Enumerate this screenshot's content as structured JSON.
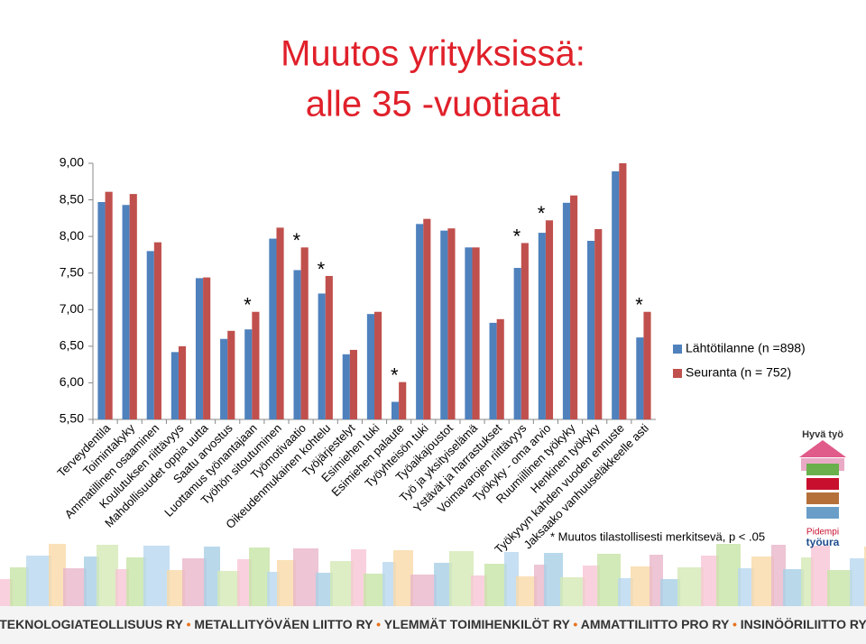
{
  "chart_data": {
    "type": "bar",
    "title": "Muutos yrityksissä:",
    "subtitle": "alle 35 -vuotiaat",
    "categories": [
      "Terveydentila",
      "Toimintakyky",
      "Ammatillinen osaaminen",
      "Koulutuksen riittävyys",
      "Mahdollisuudet oppia uutta",
      "Saatu arvostus",
      "Luottamus työnantajaan",
      "Työhön sitoutuminen",
      "Työmotivaatio",
      "Oikeudenmukainen kohtelu",
      "Työjärjestelyt",
      "Esimiehen tuki",
      "Esimiehen palaute",
      "Työyhteisön tuki",
      "Työaikajoustot",
      "Työ ja yksityiselämä",
      "Ystävät ja harrastukset",
      "Voimavarojen riittävyys",
      "Työkyky - oma arvio",
      "Ruumiillinen työkyky",
      "Henkinen työkyky",
      "Työkyvyn kahden vuoden ennuste",
      "Jaksaako vanhuuseläkkeelle asti"
    ],
    "series": [
      {
        "name": "Lähtötilanne (n =898)",
        "color": "#4f81bd",
        "values": [
          8.47,
          8.43,
          7.8,
          6.42,
          7.43,
          6.6,
          6.73,
          7.97,
          7.54,
          7.22,
          6.39,
          6.94,
          5.74,
          8.17,
          8.08,
          7.85,
          6.82,
          7.57,
          8.05,
          8.46,
          7.94,
          8.89,
          6.62
        ]
      },
      {
        "name": "Seuranta (n = 752)",
        "color": "#c0504d",
        "values": [
          8.61,
          8.58,
          7.92,
          6.5,
          7.44,
          6.71,
          6.97,
          8.12,
          7.85,
          7.46,
          6.45,
          6.97,
          6.01,
          8.24,
          8.11,
          7.85,
          6.87,
          7.91,
          8.22,
          8.56,
          8.1,
          9.0,
          6.97
        ]
      }
    ],
    "ylim": [
      5.5,
      9.0
    ],
    "yticks": [
      {
        "value": 5.5,
        "label": "5,50"
      },
      {
        "value": 6.0,
        "label": "6,00"
      },
      {
        "value": 6.5,
        "label": "6,50"
      },
      {
        "value": 7.0,
        "label": "7,00"
      },
      {
        "value": 7.5,
        "label": "7,50"
      },
      {
        "value": 8.0,
        "label": "8,00"
      },
      {
        "value": 8.5,
        "label": "8,50"
      },
      {
        "value": 9.0,
        "label": "9,00"
      }
    ],
    "legend": "right",
    "grid": false,
    "annotations": [
      {
        "text": "*",
        "category": "Luottamus työnantajaan"
      },
      {
        "text": "*",
        "category": "Työmotivaatio"
      },
      {
        "text": "*",
        "category": "Oikeudenmukainen kohtelu"
      },
      {
        "text": "*",
        "category": "Esimiehen palaute"
      },
      {
        "text": "*",
        "category": "Voimavarojen riittävyys"
      },
      {
        "text": "*",
        "category": "Työkyky - oma arvio"
      },
      {
        "text": "*",
        "category": "Jaksaako vanhuuseläkkeelle asti"
      }
    ],
    "footnote": "* Muutos tilastollisesti merkitsevä, p < .05"
  },
  "logo": {
    "top": "Hyvä työ",
    "bottom": [
      "Pidempi",
      "työura"
    ]
  },
  "footer": [
    "TEKNOLOGIATEOLLISUUS RY",
    "METALLITYÖVÄEN LIITTO RY",
    "YLEMMÄT TOIMIHENKILÖT RY",
    "AMMATTILIITTO PRO RY",
    "INSINÖÖRILIITTO RY"
  ]
}
